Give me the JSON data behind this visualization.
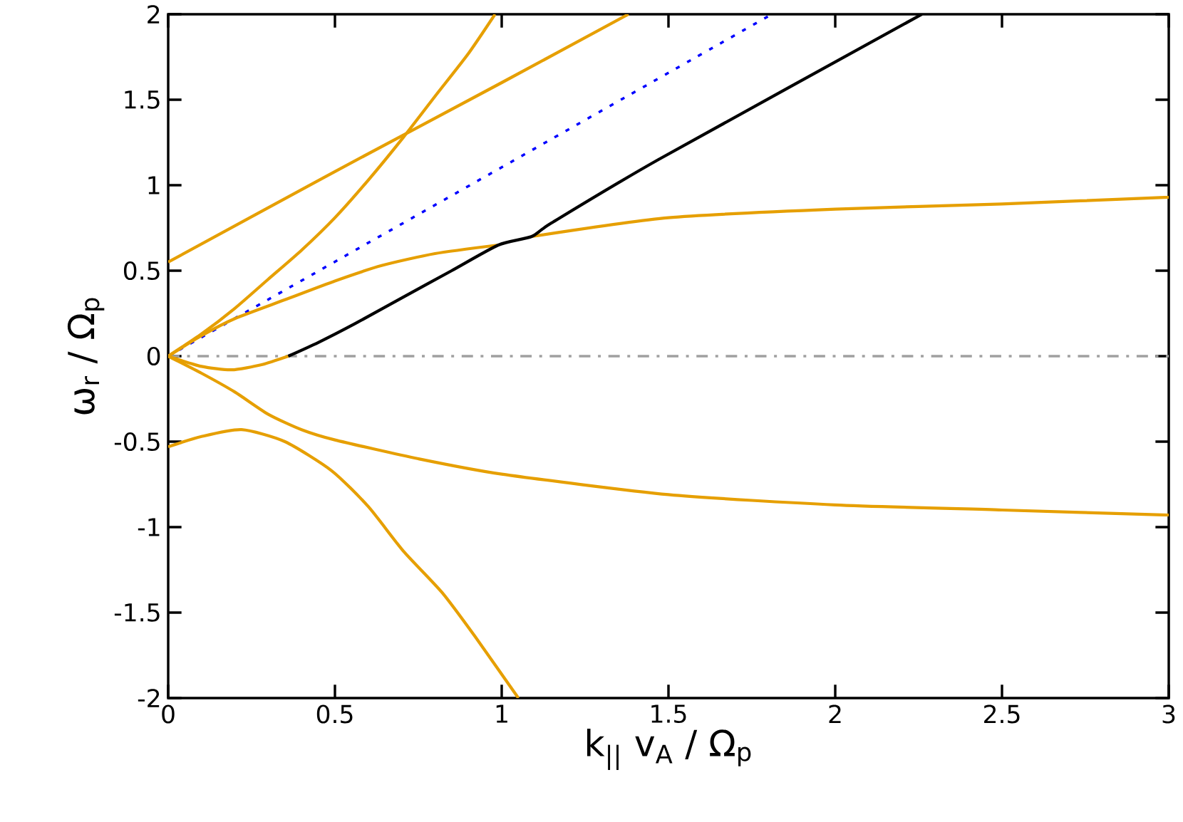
{
  "chart_data": {
    "type": "line",
    "xlabel": "k$_{||}$ v$_{A}$ / Ω$_{p}$",
    "ylabel": "ω$_{r}$ / Ω$_{p}$",
    "xlim": [
      0,
      3
    ],
    "ylim": [
      -2,
      2
    ],
    "xticks": [
      0,
      0.5,
      1,
      1.5,
      2,
      2.5,
      3
    ],
    "yticks": [
      -2,
      -1.5,
      -1,
      -0.5,
      0,
      0.5,
      1,
      1.5,
      2
    ],
    "grid": false,
    "marker": "none",
    "ref_lines": [
      {
        "axis": "y",
        "value": 0,
        "color": "#a0a0a0",
        "line_style": "dashdot"
      }
    ],
    "series": [
      {
        "color": "#e69f00",
        "line_style": "solid",
        "x": [
          0,
          0.5,
          1,
          1.38
        ],
        "values": [
          0.55,
          1.08,
          1.6,
          2
        ]
      },
      {
        "color": "#e69f00",
        "line_style": "solid",
        "x": [
          0,
          0.1,
          0.2,
          0.3,
          0.4,
          0.5,
          0.6,
          0.705,
          0.8,
          0.9,
          0.98
        ],
        "values": [
          0,
          0.13,
          0.28,
          0.45,
          0.62,
          0.81,
          1.03,
          1.28,
          1.52,
          1.77,
          2
        ]
      },
      {
        "color": "#0000ff",
        "line_style": "dotted",
        "x": [
          0,
          1.81
        ],
        "values": [
          0,
          2
        ]
      },
      {
        "color": "#e69f00",
        "line_style": "solid",
        "x": [
          0,
          0.1,
          0.2,
          0.35,
          0.5,
          0.64,
          0.8,
          0.99,
          1.04,
          1.09,
          1.5,
          2,
          2.5,
          3
        ],
        "values": [
          0,
          0.12,
          0.22,
          0.33,
          0.44,
          0.53,
          0.6,
          0.65,
          null,
          0.7,
          0.81,
          0.86,
          0.89,
          0.93
        ]
      },
      {
        "color": "#e69f00",
        "line_style": "solid",
        "x": [
          0,
          0.1,
          0.19,
          0.28,
          0.36
        ],
        "values": [
          0,
          -0.06,
          -0.08,
          -0.05,
          0
        ]
      },
      {
        "color": "#000000",
        "line_style": "solid",
        "x": [
          0.36,
          0.45,
          0.56,
          0.7,
          0.85,
          0.99,
          1.09,
          1.15,
          1.47,
          2.26
        ],
        "values": [
          0,
          0.08,
          0.19,
          0.34,
          0.5,
          0.65,
          0.7,
          0.78,
          1.15,
          2
        ]
      },
      {
        "color": "#e69f00",
        "line_style": "solid",
        "x": [
          0,
          0.1,
          0.2,
          0.3,
          0.4,
          0.5,
          0.75,
          1,
          1.5,
          2,
          2.5,
          3
        ],
        "values": [
          0,
          -0.1,
          -0.21,
          -0.34,
          -0.43,
          -0.49,
          -0.6,
          -0.69,
          -0.81,
          -0.87,
          -0.9,
          -0.93
        ]
      },
      {
        "color": "#e69f00",
        "line_style": "solid",
        "x": [
          0,
          0.1,
          0.22,
          0.35,
          0.49,
          0.6,
          0.705,
          0.82,
          0.92,
          1.05
        ],
        "values": [
          -0.53,
          -0.47,
          -0.43,
          -0.5,
          -0.67,
          -0.88,
          -1.14,
          -1.38,
          -1.64,
          -2
        ]
      }
    ]
  }
}
